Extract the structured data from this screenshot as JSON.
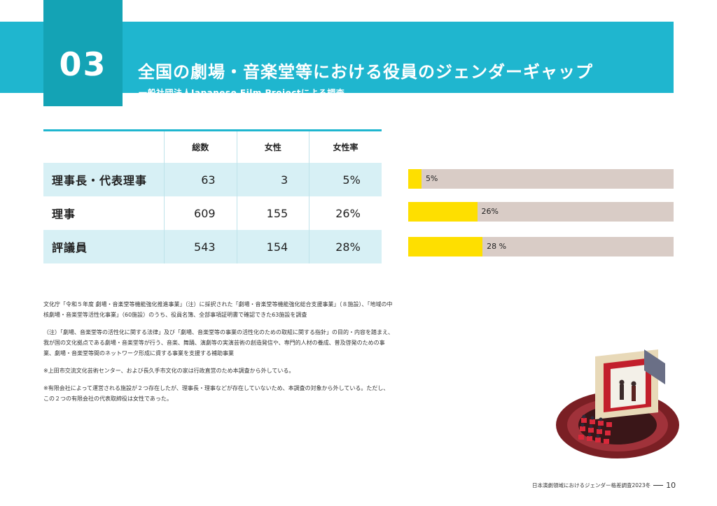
{
  "header": {
    "number": "03",
    "title": "全国の劇場・音楽堂等における役員のジェンダーギャップ",
    "subtitle": "一般社団法人Japanese Film Projectによる調査"
  },
  "table": {
    "columns": [
      "総数",
      "女性",
      "女性率"
    ],
    "rows": [
      {
        "label": "理事長・代表理事",
        "total": "63",
        "female": "3",
        "rate": "5%"
      },
      {
        "label": "理事",
        "total": "609",
        "female": "155",
        "rate": "26%"
      },
      {
        "label": "評議員",
        "total": "543",
        "female": "154",
        "rate": "28%"
      }
    ]
  },
  "bars": [
    {
      "label": "5%",
      "value": 0.05
    },
    {
      "label": "26%",
      "value": 0.26
    },
    {
      "label": "28 %",
      "value": 0.28
    }
  ],
  "colors": {
    "accent": "#1fb6cf",
    "number_box": "#14a3b5",
    "bar_fill": "#fedf00",
    "bar_bg": "#d9ccc6",
    "row_shade": "#d7f0f5"
  },
  "notes": [
    "文化庁「令和５年度 劇場・音楽堂等機能強化推進事業」（注）に採択された「劇場・音楽堂等機能強化総合支援事業」（８施設）、「地域の中核劇場・音楽堂等活性化事業」（60施設）のうち、役員名簿、全部事項証明書で確認できた63施設を調査",
    "（注）「劇場、音楽堂等の活性化に関する法律」及び「劇場、音楽堂等の事業の活性化のための取組に関する指針」の目的・内容を踏まえ、我が国の文化拠点である劇場・音楽堂等が行う、音楽、舞踊、演劇等の実演芸術の創造発信や、専門的人材の養成、普及啓発のための事業、劇場・音楽堂等間のネットワーク形成に資する事業を支援する補助事業",
    "※上田市交流文化芸術センター、および長久手市文化の家は行政直営のため本調査から外している。",
    "※有限会社によって運営される施設が２つ存在したが、理事長・理事などが存在していないため、本調査の対象から外している。ただし、この２つの有限会社の代表取締役は女性であった。"
  ],
  "footer": {
    "text": "日本演劇領域におけるジェンダー格差調査2023冬",
    "page": "10"
  }
}
